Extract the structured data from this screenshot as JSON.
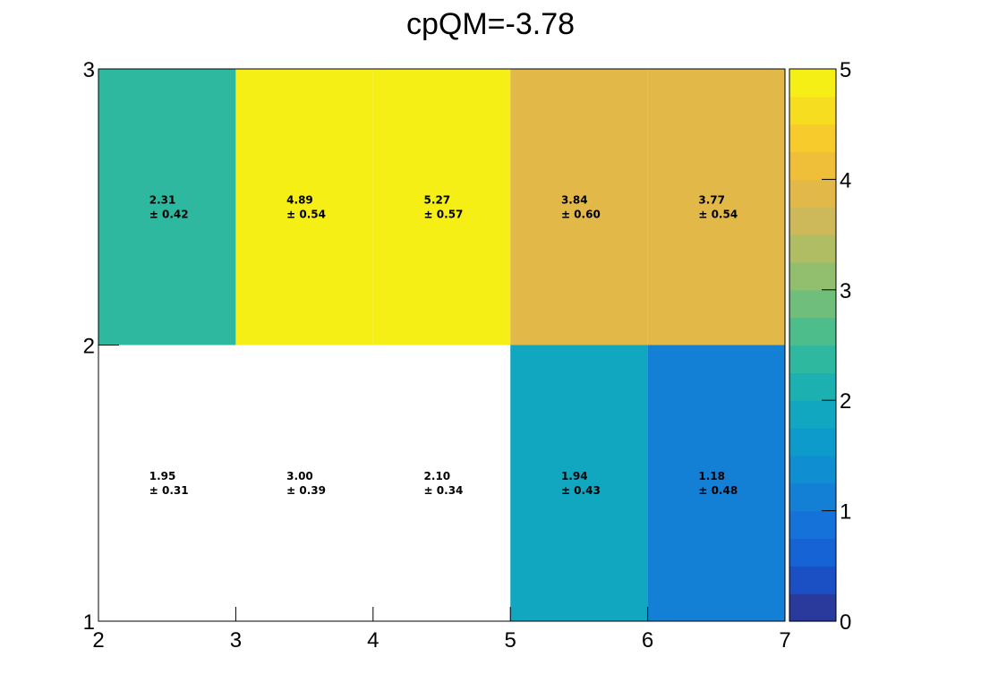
{
  "chart_data": {
    "type": "heatmap",
    "title": "cpQM=-3.78",
    "xlabel": "",
    "ylabel": "",
    "x_edges": [
      2,
      3,
      4,
      5,
      6,
      7
    ],
    "y_edges": [
      1,
      2,
      3
    ],
    "xlim": [
      2,
      7
    ],
    "ylim": [
      1,
      3
    ],
    "z_range": [
      0,
      5
    ],
    "x_tick_labels": [
      "2",
      "3",
      "4",
      "5",
      "6",
      "7"
    ],
    "y_tick_labels": [
      "1",
      "2",
      "3"
    ],
    "colorbar_tick_labels": [
      "0",
      "1",
      "2",
      "3",
      "4",
      "5"
    ],
    "cells": [
      {
        "x": [
          2,
          3
        ],
        "y": [
          2,
          3
        ],
        "value": 2.31,
        "value_label": "2.31",
        "error_label": "± 0.42"
      },
      {
        "x": [
          3,
          4
        ],
        "y": [
          2,
          3
        ],
        "value": 4.89,
        "value_label": "4.89",
        "error_label": "± 0.54"
      },
      {
        "x": [
          4,
          5
        ],
        "y": [
          2,
          3
        ],
        "value": 5.27,
        "value_label": "5.27",
        "error_label": "± 0.57"
      },
      {
        "x": [
          5,
          6
        ],
        "y": [
          2,
          3
        ],
        "value": 3.84,
        "value_label": "3.84",
        "error_label": "± 0.60"
      },
      {
        "x": [
          6,
          7
        ],
        "y": [
          2,
          3
        ],
        "value": 3.77,
        "value_label": "3.77",
        "error_label": "± 0.54"
      },
      {
        "x": [
          2,
          3
        ],
        "y": [
          1,
          2
        ],
        "value": 1.95,
        "value_label": "1.95",
        "error_label": "± 0.31",
        "filled": false
      },
      {
        "x": [
          3,
          4
        ],
        "y": [
          1,
          2
        ],
        "value": 3.0,
        "value_label": "3.00",
        "error_label": "± 0.39",
        "filled": false
      },
      {
        "x": [
          4,
          5
        ],
        "y": [
          1,
          2
        ],
        "value": 2.1,
        "value_label": "2.10",
        "error_label": "± 0.34",
        "filled": false
      },
      {
        "x": [
          5,
          6
        ],
        "y": [
          1,
          2
        ],
        "value": 1.94,
        "value_label": "1.94",
        "error_label": "± 0.43"
      },
      {
        "x": [
          6,
          7
        ],
        "y": [
          1,
          2
        ],
        "value": 1.18,
        "value_label": "1.18",
        "error_label": "± 0.48"
      }
    ],
    "palette": [
      "#2a3a9c",
      "#1b4fc4",
      "#1563d4",
      "#1572d8",
      "#1380d5",
      "#0f8ed2",
      "#0c9bcb",
      "#12a7c0",
      "#1db0b0",
      "#2fb8a0",
      "#4dbd8c",
      "#6fbe7c",
      "#91bf6e",
      "#b0bd63",
      "#cdb85a",
      "#e2b949",
      "#f0bf39",
      "#f7cb2c",
      "#f7dd1f",
      "#f5ef15"
    ],
    "colors": {
      "grid_line": "#000000",
      "background": "#ffffff"
    }
  }
}
